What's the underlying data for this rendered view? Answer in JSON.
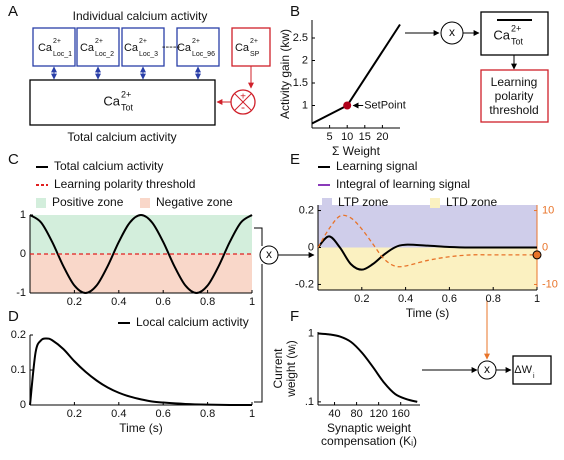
{
  "panel_labels": [
    "A",
    "B",
    "C",
    "D",
    "E",
    "F"
  ],
  "diagram": {
    "a_title": "Individual calcium activity",
    "local_boxes": [
      {
        "base": "Ca",
        "sup": "2+",
        "sub": "Loc_1"
      },
      {
        "base": "Ca",
        "sup": "2+",
        "sub": "Loc_2"
      },
      {
        "base": "Ca",
        "sup": "2+",
        "sub": "Loc_3"
      },
      {
        "base": "Ca",
        "sup": "2+",
        "sub": "Loc_96"
      }
    ],
    "ellipsis": "-----",
    "setpoint_box": {
      "base": "Ca",
      "sup": "2+",
      "sub": "SP"
    },
    "total_box": {
      "base": "Ca",
      "sup": "2+",
      "sub": "Tot"
    },
    "a_footer": "Total calcium activity",
    "comparator_signs": [
      "+",
      "-"
    ],
    "multiply_signs": [
      "x",
      "x",
      "x"
    ],
    "mean_box": {
      "base": "Ca",
      "sup": "2+",
      "sub": "Tot"
    },
    "threshold_box": [
      "Learning",
      "polarity",
      "threshold"
    ],
    "delta_box": {
      "base": "ΔW",
      "sub": "i"
    }
  },
  "chart_data": [
    {
      "type": "line",
      "ylabel": "Activity gain (kw)",
      "xlabel": "Σ Weight",
      "x": [
        0,
        10,
        25
      ],
      "series": [
        {
          "color": "#000000",
          "values": [
            0.6,
            1,
            2.8
          ]
        }
      ],
      "xlim": [
        0,
        25
      ],
      "ylim": [
        0.5,
        2.9
      ],
      "xticks": [
        5,
        10,
        15,
        20
      ],
      "yticks": [
        1,
        1.5,
        2,
        2.5
      ],
      "annotation": {
        "text": "SetPoint",
        "x": 10,
        "y": 1,
        "color": "#b0001a"
      }
    },
    {
      "type": "line",
      "smooth": true,
      "x": [
        0,
        0.05,
        0.1,
        0.15,
        0.2,
        0.25,
        0.3,
        0.35,
        0.4,
        0.45,
        0.5,
        0.55,
        0.6,
        0.65,
        0.7,
        0.75,
        0.8,
        0.85,
        0.9,
        0.95,
        1
      ],
      "series": [
        {
          "name": "Total calcium activity",
          "color": "#000000",
          "values": [
            1,
            0.809,
            0.309,
            -0.309,
            -0.809,
            -1,
            -0.809,
            -0.309,
            0.309,
            0.809,
            1,
            0.809,
            0.309,
            -0.309,
            -0.809,
            -1,
            -0.809,
            -0.309,
            0.309,
            0.809,
            1
          ]
        },
        {
          "name": "Learning polarity threshold",
          "color": "#e02020",
          "dashed": true,
          "x": [
            0,
            1
          ],
          "values": [
            0,
            0
          ]
        }
      ],
      "zones": [
        {
          "name": "Positive zone",
          "color": "#d3eedc",
          "from": 0,
          "to": 1
        },
        {
          "name": "Negative zone",
          "color": "#f9d7c9",
          "from": -1,
          "to": 0
        }
      ],
      "xlim": [
        0,
        1
      ],
      "ylim": [
        -1,
        1
      ],
      "xticks": [
        0.2,
        0.4,
        0.6,
        0.8,
        1
      ],
      "yticks": [
        -1,
        0,
        1
      ]
    },
    {
      "type": "line",
      "smooth": true,
      "xlabel": "Time (s)",
      "x": [
        0,
        0.025,
        0.05,
        0.075,
        0.1,
        0.15,
        0.2,
        0.25,
        0.3,
        0.35,
        0.4,
        0.45,
        0.5,
        0.55,
        0.6,
        0.7,
        0.8,
        0.9,
        1
      ],
      "series": [
        {
          "name": "Local calcium activity",
          "color": "#000000",
          "values": [
            0,
            0.15,
            0.185,
            0.19,
            0.185,
            0.16,
            0.125,
            0.095,
            0.07,
            0.05,
            0.035,
            0.024,
            0.016,
            0.01,
            0.007,
            0.003,
            0.001,
            0,
            0
          ]
        }
      ],
      "xlim": [
        0,
        1
      ],
      "ylim": [
        0,
        0.2
      ],
      "xticks": [
        0.2,
        0.4,
        0.6,
        0.8,
        1
      ],
      "yticks": [
        0,
        0.1,
        0.2
      ]
    },
    {
      "type": "line",
      "smooth": true,
      "xlabel": "Time (s)",
      "x": [
        0,
        0.05,
        0.1,
        0.15,
        0.2,
        0.25,
        0.3,
        0.35,
        0.4,
        0.5,
        0.6,
        0.7,
        0.8,
        0.9,
        1
      ],
      "series": [
        {
          "name": "Learning signal",
          "color": "#000000",
          "values": [
            0,
            0.06,
            0,
            -0.09,
            -0.12,
            -0.09,
            -0.04,
            0,
            0.015,
            0.01,
            0.003,
            0,
            0,
            0,
            0
          ]
        },
        {
          "name": "Integral of learning signal",
          "color": "#e8742a",
          "legend_color": "#8a3ab9",
          "dashed": true,
          "axis": "y2",
          "end_marker": true,
          "values": [
            0,
            5,
            8.5,
            8,
            5,
            1,
            -3,
            -5,
            -5,
            -3.5,
            -2.5,
            -2,
            -2,
            -2,
            -2
          ]
        }
      ],
      "zones": [
        {
          "name": "LTP zone",
          "color": "#cfcdea",
          "from": 0,
          "to": 0.23
        },
        {
          "name": "LTD zone",
          "color": "#fbf1c1",
          "from": -0.23,
          "to": 0
        }
      ],
      "xlim": [
        0,
        1
      ],
      "ylim": [
        -0.23,
        0.23
      ],
      "y2lim": [
        -11.5,
        11.5
      ],
      "y2color": "#e8742a",
      "xticks": [
        0.2,
        0.4,
        0.6,
        0.8,
        1
      ],
      "yticks": [
        -0.2,
        0,
        0.2
      ],
      "y2ticks": [
        -10,
        0,
        10
      ]
    },
    {
      "type": "line",
      "smooth": true,
      "log_y": true,
      "xlabel": [
        "Synaptic weight",
        "compensation (Kᵢ)"
      ],
      "ylabel": [
        "Current",
        "weight (wᵢ)"
      ],
      "x": [
        10,
        30,
        50,
        70,
        90,
        110,
        130,
        150,
        170,
        190
      ],
      "series": [
        {
          "color": "#000000",
          "values": [
            1,
            0.97,
            0.9,
            0.75,
            0.52,
            0.32,
            0.19,
            0.13,
            0.11,
            0.1
          ]
        }
      ],
      "xlim": [
        10,
        195
      ],
      "ylim": [
        0.09,
        1.05
      ],
      "xticks": [
        40,
        80,
        120,
        160
      ],
      "yticks": [
        1,
        {
          "value": 0.1,
          "label": ".1"
        }
      ]
    }
  ]
}
